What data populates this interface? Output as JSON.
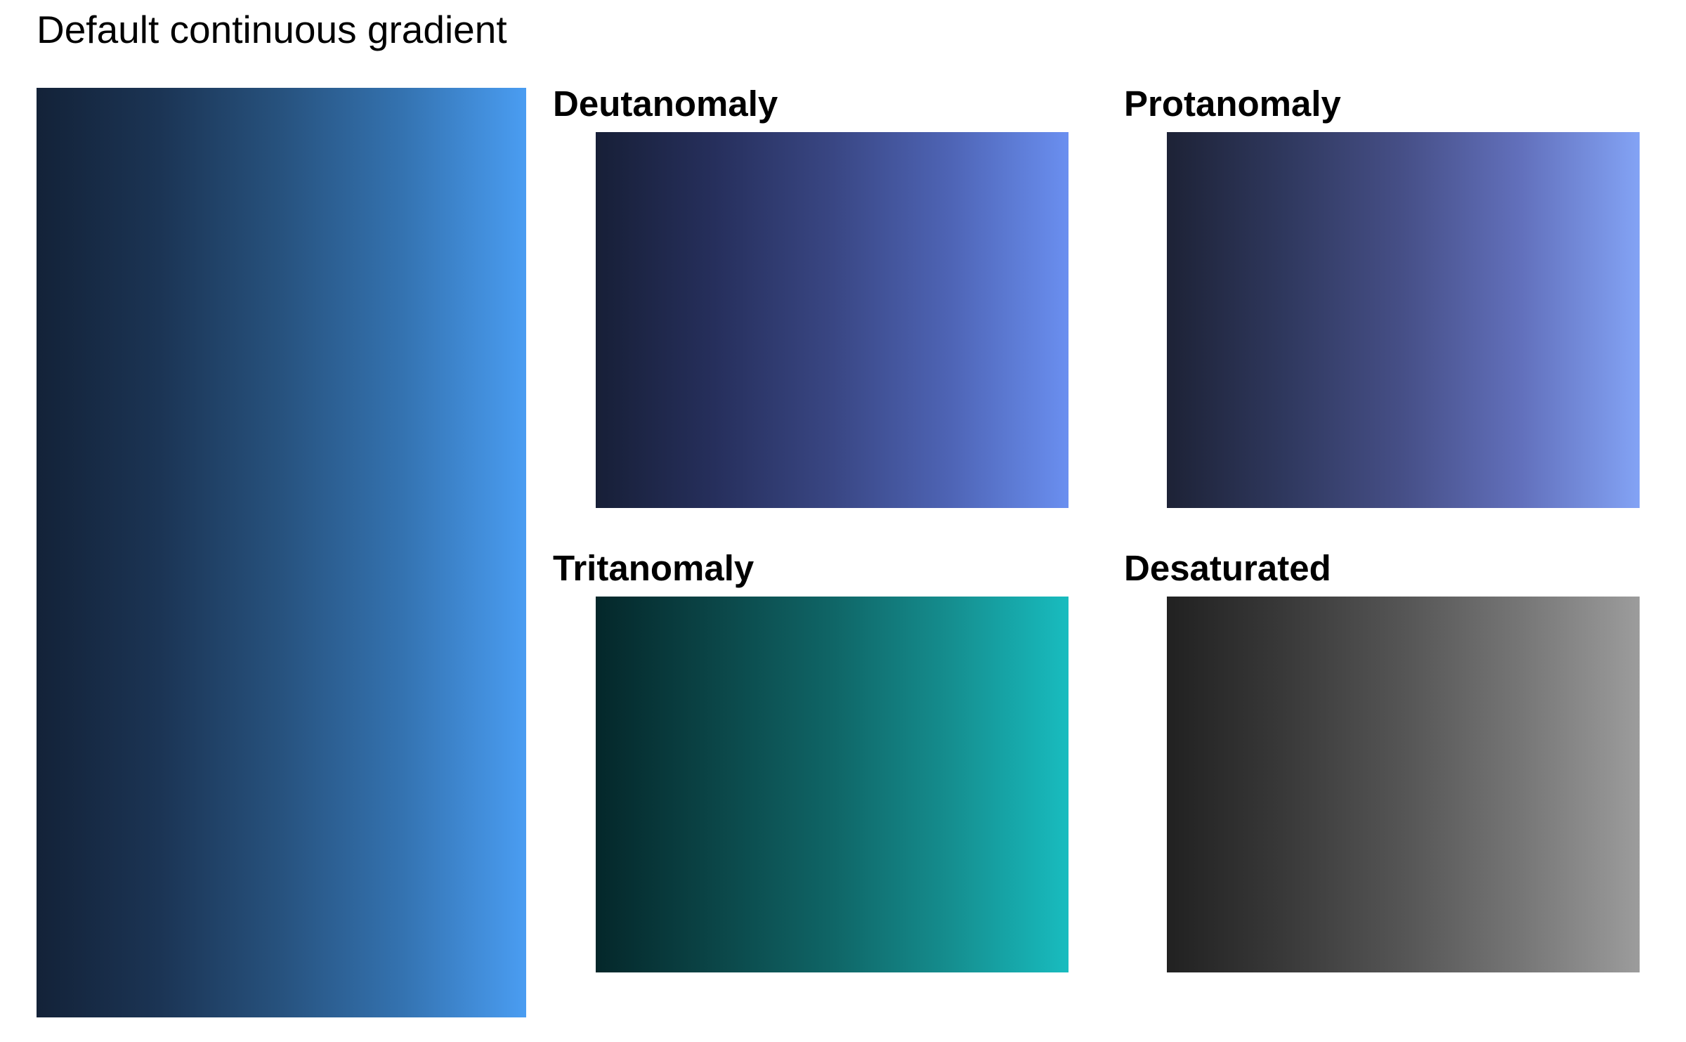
{
  "page": {
    "title": "Default continuous gradient"
  },
  "chart_data": [
    {
      "type": "heatmap",
      "name": "default",
      "title": "",
      "colors": [
        "#132238",
        "#1b3454",
        "#27527e",
        "#3473b1",
        "#4a9df2"
      ]
    },
    {
      "type": "heatmap",
      "name": "deutanomaly",
      "title": "Deutanomaly",
      "colors": [
        "#171f37",
        "#262f5c",
        "#394683",
        "#4e64b5",
        "#6a8ff0"
      ]
    },
    {
      "type": "heatmap",
      "name": "protanomaly",
      "title": "Protanomaly",
      "colors": [
        "#1d2236",
        "#2f385e",
        "#464f87",
        "#6270bc",
        "#83a3f5"
      ]
    },
    {
      "type": "heatmap",
      "name": "tritanomaly",
      "title": "Tritanomaly",
      "colors": [
        "#04272a",
        "#0b4547",
        "#0f6566",
        "#158e8f",
        "#18bcbf"
      ]
    },
    {
      "type": "heatmap",
      "name": "desaturated",
      "title": "Desaturated",
      "colors": [
        "#212121",
        "#393939",
        "#555555",
        "#767676",
        "#9c9c9c"
      ]
    }
  ]
}
